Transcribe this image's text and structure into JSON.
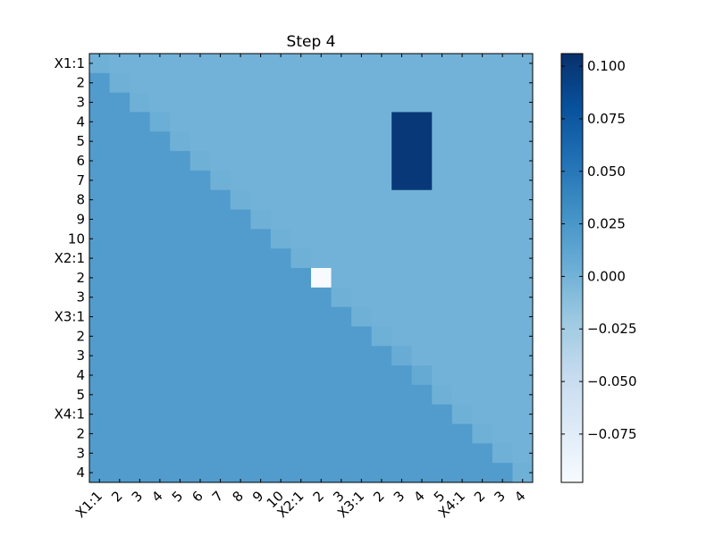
{
  "chart_data": {
    "type": "heatmap",
    "title": "Step 4",
    "xlabel": "",
    "ylabel": "",
    "row_labels": [
      "X1:1",
      "2",
      "3",
      "4",
      "5",
      "6",
      "7",
      "8",
      "9",
      "10",
      "X2:1",
      "2",
      "3",
      "X3:1",
      "2",
      "3",
      "4",
      "5",
      "X4:1",
      "2",
      "3",
      "4"
    ],
    "col_labels": [
      "X1:1",
      "2",
      "3",
      "4",
      "5",
      "6",
      "7",
      "8",
      "9",
      "10",
      "X2:1",
      "2",
      "3",
      "X3:1",
      "2",
      "3",
      "4",
      "5",
      "X4:1",
      "2",
      "3",
      "4"
    ],
    "colormap": "Blues",
    "vmin": -0.098,
    "vmax": 0.106,
    "colorbar_ticks": [
      "0.100",
      "0.075",
      "0.050",
      "0.025",
      "0.000",
      "−0.025",
      "−0.050",
      "−0.075"
    ],
    "colorbar_tick_values": [
      0.1,
      0.075,
      0.05,
      0.025,
      0.0,
      -0.025,
      -0.05,
      -0.075
    ],
    "values": [
      [
        0.002,
        0,
        0,
        0,
        0,
        0,
        0,
        0,
        0,
        0,
        0,
        0,
        0,
        0,
        0,
        0,
        0,
        0,
        0,
        0,
        0,
        0
      ],
      [
        0.02,
        0.002,
        0,
        0,
        0,
        0,
        0,
        0,
        0,
        0,
        0,
        0,
        0,
        0,
        0,
        0,
        0,
        0,
        0,
        0,
        0,
        0
      ],
      [
        0.02,
        0.02,
        0.002,
        0,
        0,
        0,
        0,
        0,
        0,
        0,
        0,
        0,
        0,
        0,
        0,
        0,
        0,
        0,
        0,
        0,
        0,
        0
      ],
      [
        0.02,
        0.02,
        0.02,
        0.004,
        0,
        0,
        0,
        0,
        0,
        0,
        0,
        0,
        0,
        0,
        0,
        0.1,
        0.1,
        0,
        0,
        0,
        0,
        0
      ],
      [
        0.02,
        0.02,
        0.02,
        0.02,
        0.002,
        0,
        0,
        0,
        0,
        0,
        0,
        0,
        0,
        0,
        0,
        0.1,
        0.1,
        0,
        0,
        0,
        0,
        0
      ],
      [
        0.02,
        0.02,
        0.02,
        0.02,
        0.02,
        0.002,
        0,
        0,
        0,
        0,
        0,
        0,
        0,
        0,
        0,
        0.1,
        0.1,
        0,
        0,
        0,
        0,
        0
      ],
      [
        0.02,
        0.02,
        0.02,
        0.02,
        0.02,
        0.02,
        0.002,
        0,
        0,
        0,
        0,
        0,
        0,
        0,
        0,
        0.1,
        0.1,
        0,
        0,
        0,
        0,
        0
      ],
      [
        0.02,
        0.02,
        0.02,
        0.02,
        0.02,
        0.02,
        0.02,
        0.002,
        0,
        0,
        0,
        0,
        0,
        0,
        0,
        0,
        0,
        0,
        0,
        0,
        0,
        0
      ],
      [
        0.02,
        0.02,
        0.02,
        0.02,
        0.02,
        0.02,
        0.02,
        0.02,
        0.002,
        0,
        0,
        0,
        0,
        0,
        0,
        0,
        0,
        0,
        0,
        0,
        0,
        0
      ],
      [
        0.02,
        0.02,
        0.02,
        0.02,
        0.02,
        0.02,
        0.02,
        0.02,
        0.02,
        0.002,
        0,
        0,
        0,
        0,
        0,
        0,
        0,
        0,
        0,
        0,
        0,
        0
      ],
      [
        0.02,
        0.02,
        0.02,
        0.02,
        0.02,
        0.02,
        0.02,
        0.02,
        0.02,
        0.02,
        0.002,
        0,
        0,
        0,
        0,
        0,
        0,
        0,
        0,
        0,
        0,
        0
      ],
      [
        0.02,
        0.02,
        0.02,
        0.02,
        0.02,
        0.02,
        0.02,
        0.02,
        0.02,
        0.02,
        0.02,
        -0.098,
        0,
        0,
        0,
        0,
        0,
        0,
        0,
        0,
        0,
        0
      ],
      [
        0.02,
        0.02,
        0.02,
        0.02,
        0.02,
        0.02,
        0.02,
        0.02,
        0.02,
        0.02,
        0.02,
        0.02,
        0.002,
        0,
        0,
        0,
        0,
        0,
        0,
        0,
        0,
        0
      ],
      [
        0.02,
        0.02,
        0.02,
        0.02,
        0.02,
        0.02,
        0.02,
        0.02,
        0.02,
        0.02,
        0.02,
        0.02,
        0.02,
        0.002,
        0,
        0,
        0,
        0,
        0,
        0,
        0,
        0
      ],
      [
        0.02,
        0.02,
        0.02,
        0.02,
        0.02,
        0.02,
        0.02,
        0.02,
        0.02,
        0.02,
        0.02,
        0.02,
        0.02,
        0.02,
        0.002,
        0,
        0,
        0,
        0,
        0,
        0,
        0
      ],
      [
        0.02,
        0.02,
        0.02,
        0.02,
        0.02,
        0.02,
        0.02,
        0.02,
        0.02,
        0.02,
        0.02,
        0.02,
        0.02,
        0.02,
        0.02,
        0.006,
        0,
        0,
        0,
        0,
        0,
        0
      ],
      [
        0.02,
        0.02,
        0.02,
        0.02,
        0.02,
        0.02,
        0.02,
        0.02,
        0.02,
        0.02,
        0.02,
        0.02,
        0.02,
        0.02,
        0.02,
        0.02,
        0.008,
        0,
        0,
        0,
        0,
        0
      ],
      [
        0.02,
        0.02,
        0.02,
        0.02,
        0.02,
        0.02,
        0.02,
        0.02,
        0.02,
        0.02,
        0.02,
        0.02,
        0.02,
        0.02,
        0.02,
        0.02,
        0.02,
        0.002,
        0,
        0,
        0,
        0
      ],
      [
        0.02,
        0.02,
        0.02,
        0.02,
        0.02,
        0.02,
        0.02,
        0.02,
        0.02,
        0.02,
        0.02,
        0.02,
        0.02,
        0.02,
        0.02,
        0.02,
        0.02,
        0.02,
        0.002,
        0,
        0,
        0
      ],
      [
        0.02,
        0.02,
        0.02,
        0.02,
        0.02,
        0.02,
        0.02,
        0.02,
        0.02,
        0.02,
        0.02,
        0.02,
        0.02,
        0.02,
        0.02,
        0.02,
        0.02,
        0.02,
        0.02,
        0.002,
        0,
        0
      ],
      [
        0.02,
        0.02,
        0.02,
        0.02,
        0.02,
        0.02,
        0.02,
        0.02,
        0.02,
        0.02,
        0.02,
        0.02,
        0.02,
        0.02,
        0.02,
        0.02,
        0.02,
        0.02,
        0.02,
        0.02,
        0.002,
        0
      ],
      [
        0.02,
        0.02,
        0.02,
        0.02,
        0.02,
        0.02,
        0.02,
        0.02,
        0.02,
        0.02,
        0.02,
        0.02,
        0.02,
        0.02,
        0.02,
        0.02,
        0.02,
        0.02,
        0.02,
        0.02,
        0.02,
        0.002
      ]
    ]
  }
}
